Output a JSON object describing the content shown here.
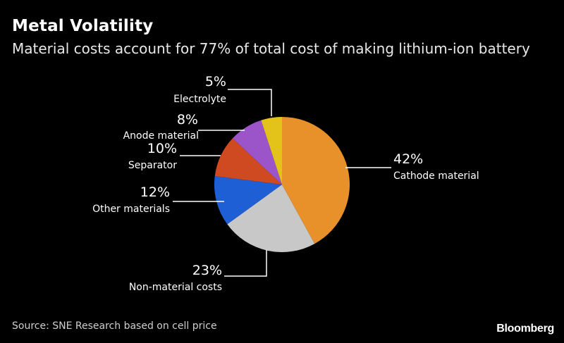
{
  "header": {
    "title": "Metal Volatility",
    "subtitle": "Material costs account for 77% of total cost of making lithium-ion battery"
  },
  "footer": {
    "source": "Source: SNE Research based on cell price",
    "brand": "Bloomberg"
  },
  "chart_data": {
    "type": "pie",
    "start": "12 o'clock",
    "direction": "clockwise",
    "slices": [
      {
        "label": "Cathode material",
        "value": 42,
        "pct_label": "42%",
        "color": "#E8902A"
      },
      {
        "label": "Non-material costs",
        "value": 23,
        "pct_label": "23%",
        "color": "#C8C8C8"
      },
      {
        "label": "Other materials",
        "value": 12,
        "pct_label": "12%",
        "color": "#1E5FD6"
      },
      {
        "label": "Separator",
        "value": 10,
        "pct_label": "10%",
        "color": "#CF4A21"
      },
      {
        "label": "Anode material",
        "value": 8,
        "pct_label": "8%",
        "color": "#9B55C9"
      },
      {
        "label": "Electrolyte",
        "value": 5,
        "pct_label": "5%",
        "color": "#E3C21A"
      }
    ]
  }
}
